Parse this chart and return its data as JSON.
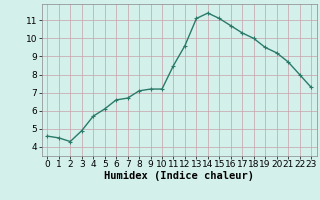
{
  "x": [
    0,
    1,
    2,
    3,
    4,
    5,
    6,
    7,
    8,
    9,
    10,
    11,
    12,
    13,
    14,
    15,
    16,
    17,
    18,
    19,
    20,
    21,
    22,
    23
  ],
  "y": [
    4.6,
    4.5,
    4.3,
    4.9,
    5.7,
    6.1,
    6.6,
    6.7,
    7.1,
    7.2,
    7.2,
    8.5,
    9.6,
    11.1,
    11.4,
    11.1,
    10.7,
    10.3,
    10.0,
    9.5,
    9.2,
    8.7,
    8.0,
    7.3
  ],
  "xlabel": "Humidex (Indice chaleur)",
  "xlim": [
    -0.5,
    23.5
  ],
  "ylim": [
    3.5,
    11.9
  ],
  "yticks": [
    4,
    5,
    6,
    7,
    8,
    9,
    10,
    11
  ],
  "xticks": [
    0,
    1,
    2,
    3,
    4,
    5,
    6,
    7,
    8,
    9,
    10,
    11,
    12,
    13,
    14,
    15,
    16,
    17,
    18,
    19,
    20,
    21,
    22,
    23
  ],
  "line_color": "#2a7a6a",
  "marker": "P",
  "marker_size": 2.5,
  "bg_color": "#d4f0eb",
  "grid_color_major": "#c8a0a8",
  "xlabel_fontsize": 7.5,
  "tick_fontsize": 6.5,
  "line_width": 1.0
}
